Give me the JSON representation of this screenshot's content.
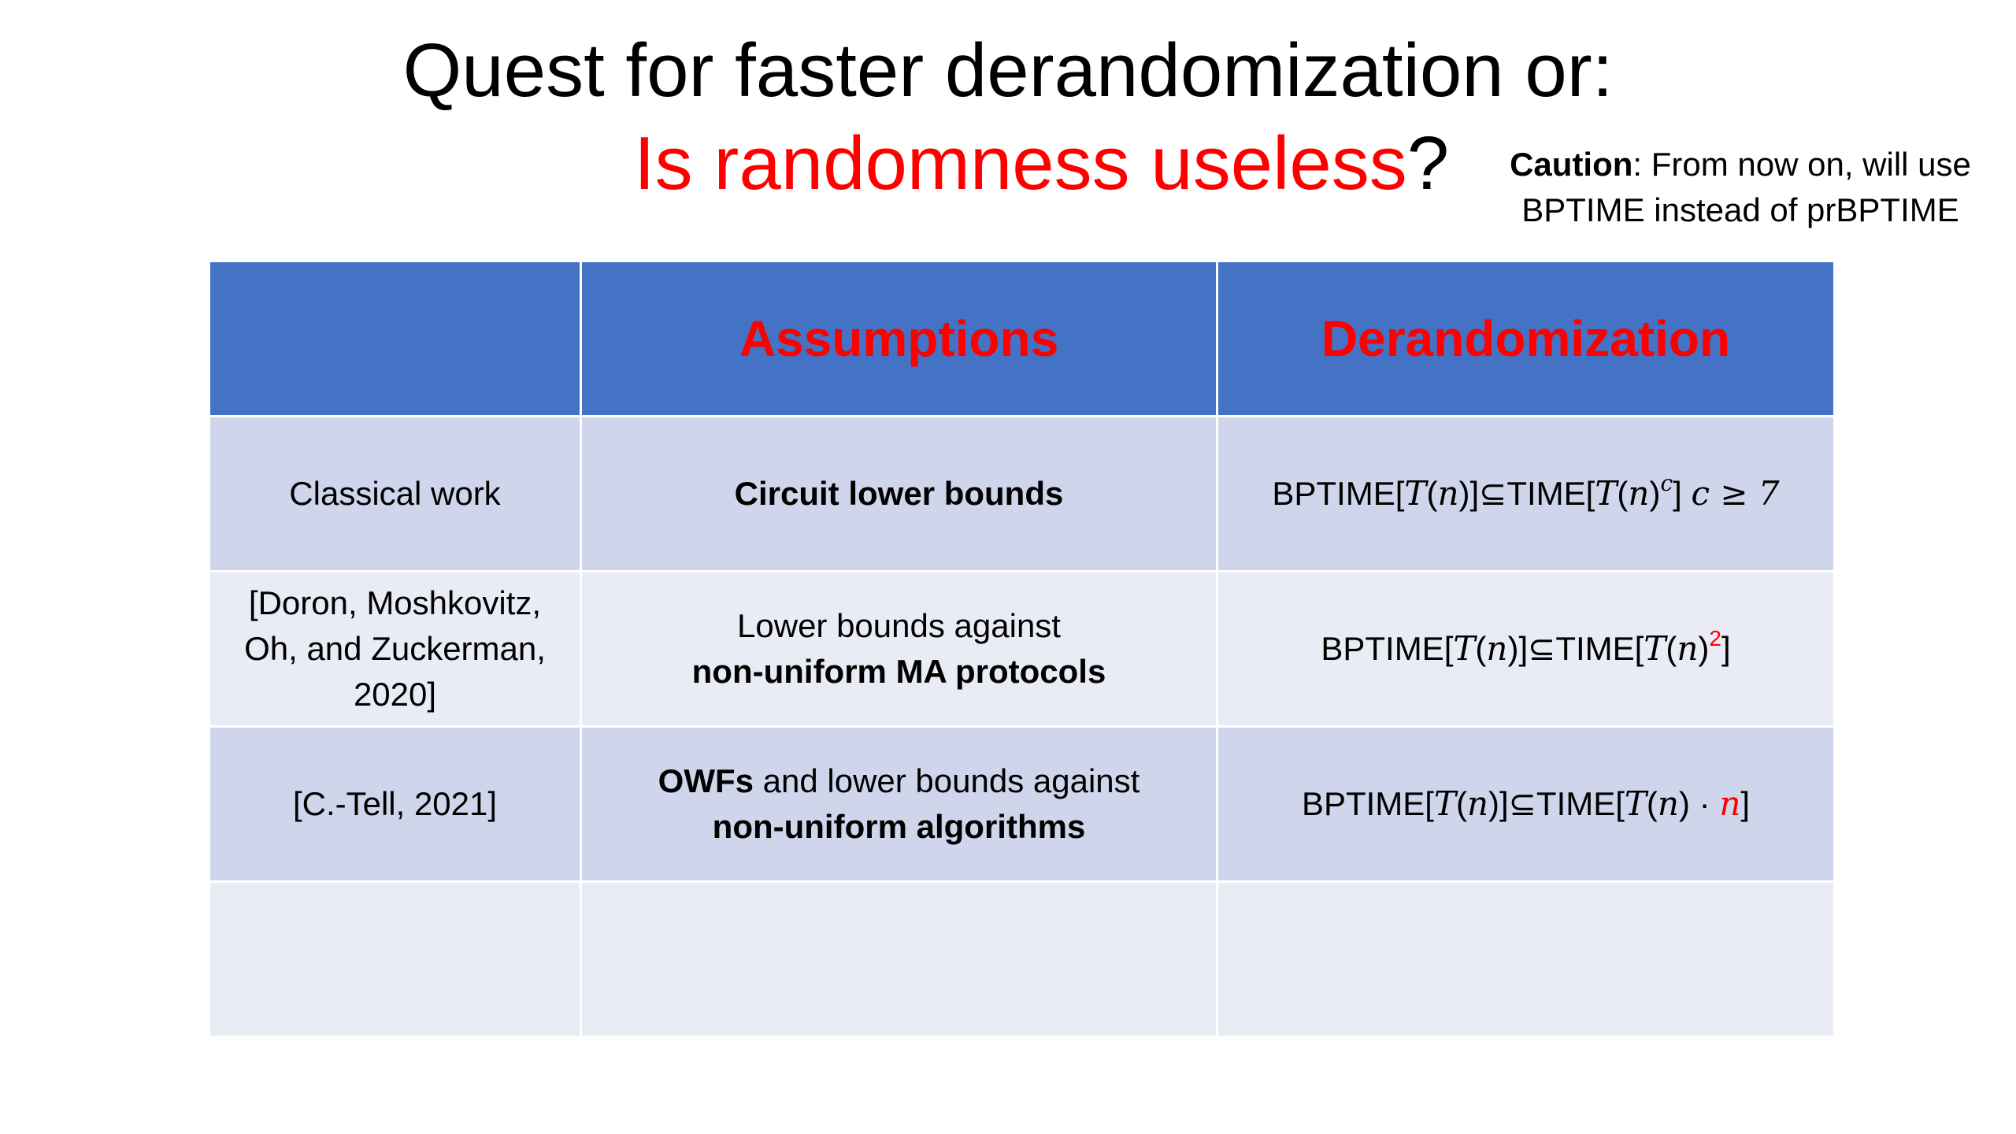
{
  "title": {
    "line1": "Quest for faster derandomization or:",
    "line2_red": "Is randomness useless",
    "line2_suffix": "?"
  },
  "caution": {
    "label": "Caution",
    "text_line1": ": From now on, will use",
    "text_line2": "BPTIME instead of prBPTIME"
  },
  "table": {
    "headers": [
      "",
      "Assumptions",
      "Derandomization"
    ],
    "rows": [
      {
        "work": "Classical work",
        "assumption_bold": "Circuit lower bounds",
        "derand_prefix": "BPTIME[",
        "derand_T": "T",
        "derand_n": "n",
        "derand_mid": "]⊆TIME[",
        "derand_exp": "c",
        "derand_tail": "]",
        "derand_cond": "c ≥ 7"
      },
      {
        "work": "[Doron, Moshkovitz, Oh, and Zuckerman, 2020]",
        "assumption_plain": "Lower bounds against",
        "assumption_bold": "non-uniform MA protocols",
        "derand_prefix": "BPTIME[",
        "derand_mid": "]⊆TIME[",
        "derand_exp": "2",
        "derand_tail": "]"
      },
      {
        "work": "[C.-Tell, 2021]",
        "assumption_bold_a": "OWFs",
        "assumption_plain": " and lower bounds against",
        "assumption_bold": "non-uniform algorithms",
        "derand_prefix": "BPTIME[",
        "derand_mid": "]⊆TIME[",
        "derand_mult": " · ",
        "derand_factor": "n",
        "derand_tail": "]"
      },
      {
        "work": "",
        "assumption": "",
        "derand": ""
      }
    ]
  },
  "colors": {
    "header_bg": "#4472c4",
    "row_dark": "#cfd5ea",
    "row_light": "#e9ebf5",
    "accent_red": "#ff0000"
  }
}
